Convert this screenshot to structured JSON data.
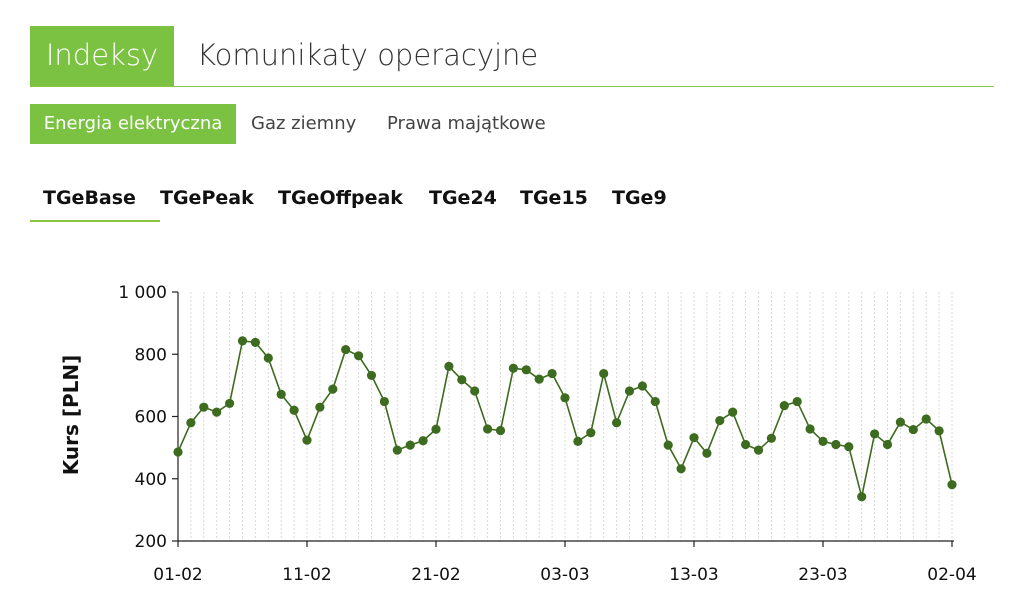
{
  "top_tabs": [
    {
      "label": "Indeksy",
      "active": true
    },
    {
      "label": "Komunikaty operacyjne",
      "active": false
    }
  ],
  "sub_tabs": [
    {
      "label": "Energia elektryczna",
      "active": true
    },
    {
      "label": "Gaz ziemny",
      "active": false
    },
    {
      "label": "Prawa majątkowe",
      "active": false
    }
  ],
  "index_tabs": [
    {
      "label": "TGeBase",
      "active": true
    },
    {
      "label": "TGePeak",
      "active": false
    },
    {
      "label": "TGeOffpeak",
      "active": false
    },
    {
      "label": "TGe24",
      "active": false
    },
    {
      "label": "TGe15",
      "active": false
    },
    {
      "label": "TGe9",
      "active": false
    }
  ],
  "colors": {
    "accent": "#7bc242",
    "series": "#3d6b1f"
  },
  "chart_data": {
    "type": "line",
    "title": "",
    "xlabel": "",
    "ylabel": "Kurs [PLN]",
    "ylim": [
      200,
      1000
    ],
    "y_ticks": [
      200,
      400,
      600,
      800,
      1000
    ],
    "y_tick_labels": [
      "200",
      "400",
      "600",
      "800",
      "1 000"
    ],
    "x_ticks": [
      {
        "day": 0,
        "label": "01-02"
      },
      {
        "day": 10,
        "label": "11-02"
      },
      {
        "day": 20,
        "label": "21-02"
      },
      {
        "day": 30,
        "label": "03-03"
      },
      {
        "day": 40,
        "label": "13-03"
      },
      {
        "day": 50,
        "label": "23-03"
      },
      {
        "day": 60,
        "label": "02-04"
      }
    ],
    "x_range": [
      0,
      60
    ],
    "grid": "vertical-daily",
    "series": [
      {
        "name": "",
        "values": [
          486,
          580,
          630,
          614,
          642,
          843,
          838,
          788,
          671,
          620,
          524,
          630,
          688,
          815,
          795,
          732,
          648,
          492,
          508,
          522,
          559,
          761,
          718,
          682,
          560,
          555,
          755,
          750,
          720,
          738,
          660,
          520,
          548,
          738,
          580,
          682,
          698,
          648,
          508,
          432,
          532,
          482,
          587,
          614,
          510,
          492,
          530,
          635,
          648,
          560,
          520,
          510,
          503,
          342,
          544,
          510,
          582,
          558,
          592,
          554,
          381
        ]
      }
    ]
  }
}
